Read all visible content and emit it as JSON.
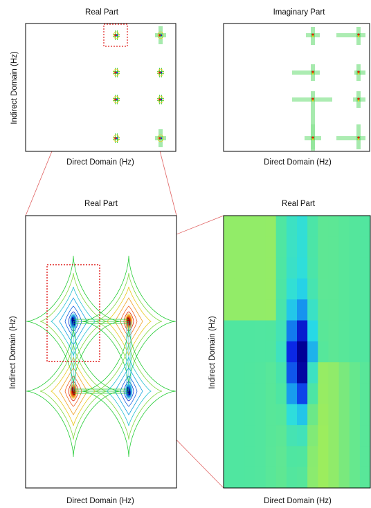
{
  "panels": {
    "top_left": {
      "title": "Real Part",
      "xlabel": "Direct Domain (Hz)",
      "ylabel": "Indirect Domain (Hz)"
    },
    "top_right": {
      "title": "Imaginary Part",
      "xlabel": "Direct Domain (Hz)"
    },
    "bottom_left": {
      "title": "Real Part",
      "xlabel": "Direct Domain (Hz)",
      "ylabel": "Indirect Domain (Hz)"
    },
    "bottom_right": {
      "title": "Real Part",
      "xlabel": "Direct Domain (Hz)",
      "ylabel": "Indirect Domain (Hz)"
    }
  },
  "colors": {
    "frame": "#000000",
    "zoom_box": "#e0201e",
    "zoom_line": "#e06060",
    "contour_outer": "#22cc33",
    "contour_mid": "#e8c81a",
    "peak_pos": "#e02010",
    "peak_neg": "#1030d0",
    "heatmap_bg": "#4ee0a0"
  }
}
